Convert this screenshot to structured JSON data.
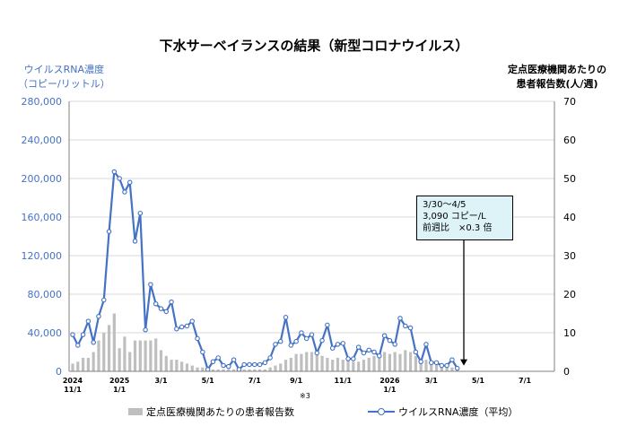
{
  "title": "下水サーベイランスの結果（新型コロナウイルス）",
  "left_axis_label": [
    "ウイルスRNA濃度",
    "（コピー/リットル）"
  ],
  "right_axis_label": [
    "定点医療機関あたりの",
    "患者報告数(人/週)"
  ],
  "footnote": "※3",
  "legend": {
    "bars_label": "定点医療機関あたりの患者報告数",
    "line_label": "ウイルスRNA濃度（平均）"
  },
  "callout": {
    "line1": "3/30〜4/5",
    "line2": "3,090 コピー/L",
    "line3": "前週比　×0.3 倍"
  },
  "colors": {
    "line": "#4472C4",
    "bars": "#BFBFBF",
    "callout_bg": "#DDF3F7"
  },
  "chart_data": {
    "type": "bar+line",
    "x_ticks": [
      {
        "week": 0,
        "label": "2024",
        "sublabel": "11/1"
      },
      {
        "week": 9,
        "label": "2025",
        "sublabel": "1/1"
      },
      {
        "week": 17,
        "label": "3/1",
        "sublabel": ""
      },
      {
        "week": 26,
        "label": "5/1",
        "sublabel": ""
      },
      {
        "week": 35,
        "label": "7/1",
        "sublabel": ""
      },
      {
        "week": 43,
        "label": "9/1",
        "sublabel": ""
      },
      {
        "week": 52,
        "label": "11/1",
        "sublabel": ""
      },
      {
        "week": 61,
        "label": "2026",
        "sublabel": "1/1"
      },
      {
        "week": 69,
        "label": "3/1",
        "sublabel": ""
      },
      {
        "week": 78,
        "label": "5/1",
        "sublabel": ""
      },
      {
        "week": 87,
        "label": "7/1",
        "sublabel": ""
      }
    ],
    "week_domain": [
      0,
      92
    ],
    "y_left": {
      "min": 0,
      "max": 280000,
      "ticks": [
        0,
        40000,
        80000,
        120000,
        160000,
        200000,
        240000,
        280000
      ],
      "tick_labels": [
        "0",
        "40,000",
        "80,000",
        "120,000",
        "160,000",
        "200,000",
        "240,000",
        "280,000"
      ]
    },
    "y_right": {
      "min": 0,
      "max": 70,
      "ticks": [
        0,
        10,
        20,
        30,
        40,
        50,
        60,
        70
      ]
    },
    "grid": "horizontal",
    "series": [
      {
        "name": "定点医療機関あたりの患者報告数",
        "axis": "right",
        "kind": "bar",
        "values": [
          2,
          2.5,
          3.5,
          3.5,
          5,
          8,
          10,
          12,
          15,
          6,
          9,
          5,
          8,
          8,
          8,
          8,
          8.5,
          5.5,
          4,
          3,
          3,
          2.5,
          2,
          1.5,
          1,
          1,
          0.5,
          0.5,
          0.5,
          0.5,
          0.5,
          0.5,
          0.5,
          0.5,
          0.5,
          0.5,
          0.5,
          0.5,
          1,
          1.5,
          2,
          3,
          3.5,
          4.5,
          4.5,
          5,
          5,
          4.5,
          4,
          3.5,
          3,
          3.5,
          3,
          3,
          2.5,
          2.5,
          3,
          3.5,
          4,
          3.5,
          5,
          4.5,
          5,
          4.5,
          5.5,
          5,
          4,
          3,
          3,
          2.5,
          2,
          1.5,
          1,
          1
        ]
      },
      {
        "name": "ウイルスRNA濃度（平均）",
        "axis": "left",
        "kind": "line",
        "values": [
          38000,
          27000,
          38000,
          52000,
          30000,
          57000,
          74000,
          145000,
          207000,
          200000,
          186000,
          196000,
          135000,
          164000,
          43000,
          90000,
          70000,
          65000,
          62000,
          72000,
          44000,
          46000,
          47000,
          52000,
          34000,
          20000,
          2000,
          10000,
          14000,
          6000,
          5000,
          12000,
          2000,
          7000,
          7000,
          7000,
          7000,
          9000,
          14000,
          28000,
          31000,
          56000,
          27000,
          31000,
          40000,
          34000,
          38000,
          19000,
          32000,
          48000,
          24000,
          28000,
          29000,
          13000,
          13000,
          25000,
          19000,
          22000,
          20000,
          16000,
          37000,
          32000,
          28000,
          55000,
          47000,
          45000,
          20000,
          10000,
          28000,
          9000,
          9000,
          6000,
          6000,
          12000,
          3090
        ]
      }
    ],
    "annotation": {
      "text": [
        "3/30〜4/5",
        "3,090 コピー/L",
        "前週比　×0.3 倍"
      ],
      "points_to_week": 74
    }
  }
}
